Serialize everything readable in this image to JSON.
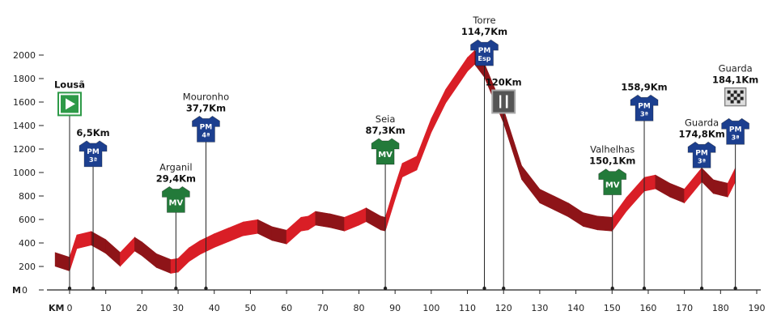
{
  "colors": {
    "ribbon": "#d91e26",
    "ribbon_dark": "#8e1418",
    "pm_jersey": "#1c3f8f",
    "mv_jersey": "#237a3a",
    "start_flag": "#2e9a48",
    "axis": "#222222"
  },
  "chart_data": {
    "type": "area",
    "title": "",
    "xlabel": "KM",
    "ylabel": "M",
    "xlim": [
      0,
      190
    ],
    "ylim": [
      0,
      2000
    ],
    "x_ticks": [
      0,
      10,
      20,
      30,
      40,
      50,
      60,
      70,
      80,
      90,
      100,
      110,
      120,
      130,
      140,
      150,
      160,
      170,
      180,
      190
    ],
    "y_ticks": [
      0,
      200,
      400,
      600,
      800,
      1000,
      1200,
      1400,
      1600,
      1800,
      2000
    ],
    "y_zero_label": "0",
    "grid": false,
    "series": [
      {
        "values_x": [
          -4,
          0,
          2,
          6,
          10,
          14,
          18,
          20,
          24,
          28,
          30,
          33,
          36,
          40,
          44,
          48,
          52,
          56,
          60,
          64,
          66,
          68,
          72,
          76,
          80,
          82,
          86,
          87.3,
          90,
          92,
          96,
          100,
          104,
          110,
          112,
          114.7,
          120,
          125,
          130,
          134,
          138,
          142,
          146,
          150,
          154,
          158.9,
          162,
          166,
          170,
          174.8,
          178,
          182,
          184.1
        ],
        "values_y": [
          260,
          220,
          410,
          440,
          370,
          260,
          390,
          350,
          250,
          200,
          210,
          300,
          360,
          420,
          470,
          520,
          540,
          480,
          450,
          560,
          570,
          610,
          590,
          560,
          610,
          640,
          570,
          560,
          830,
          1020,
          1080,
          1400,
          1650,
          1920,
          1980,
          1870,
          1480,
          1000,
          800,
          740,
          680,
          600,
          570,
          560,
          730,
          900,
          920,
          850,
          800,
          980,
          880,
          850,
          980
        ]
      }
    ],
    "markers": [
      {
        "km": 0,
        "alt": 1680,
        "icon": "start-flag",
        "name": "Lousã",
        "km_label": ""
      },
      {
        "km": 6.5,
        "alt": 1270,
        "icon": "pm-jersey",
        "cat": "3ª",
        "name": "",
        "km_label": "6,5Km"
      },
      {
        "km": 29.4,
        "alt": 880,
        "icon": "mv-jersey",
        "cat": "MV",
        "name": "Arganil",
        "km_label": "29,4Km"
      },
      {
        "km": 37.7,
        "alt": 1480,
        "icon": "pm-jersey",
        "cat": "4ª",
        "name": "Mouronho",
        "km_label": "37,7Km"
      },
      {
        "km": 87.3,
        "alt": 1290,
        "icon": "mv-jersey",
        "cat": "MV",
        "name": "Seia",
        "km_label": "87,3Km"
      },
      {
        "km": 114.7,
        "alt": 2130,
        "icon": "pm-jersey",
        "cat": "Esp",
        "name": "Torre",
        "km_label": "114,7Km"
      },
      {
        "km": 120,
        "alt": 1700,
        "icon": "feed-zone",
        "name": "",
        "km_label": "120Km"
      },
      {
        "km": 150.1,
        "alt": 1030,
        "icon": "mv-jersey",
        "cat": "MV",
        "name": "Valhelhas",
        "km_label": "150,1Km"
      },
      {
        "km": 158.9,
        "alt": 1660,
        "icon": "pm-jersey",
        "cat": "3ª",
        "name": "",
        "km_label": "158,9Km"
      },
      {
        "km": 174.8,
        "alt": 1260,
        "icon": "pm-jersey",
        "cat": "3ª",
        "name": "Guarda",
        "km_label": "174,8Km"
      },
      {
        "km": 184.1,
        "alt": 1460,
        "icon": "pm-jersey",
        "cat": "3ª",
        "name": "",
        "km_label": ""
      },
      {
        "km": 184.1,
        "alt": 1720,
        "icon": "finish-flag",
        "name": "Guarda",
        "km_label": "184,1Km"
      }
    ]
  }
}
